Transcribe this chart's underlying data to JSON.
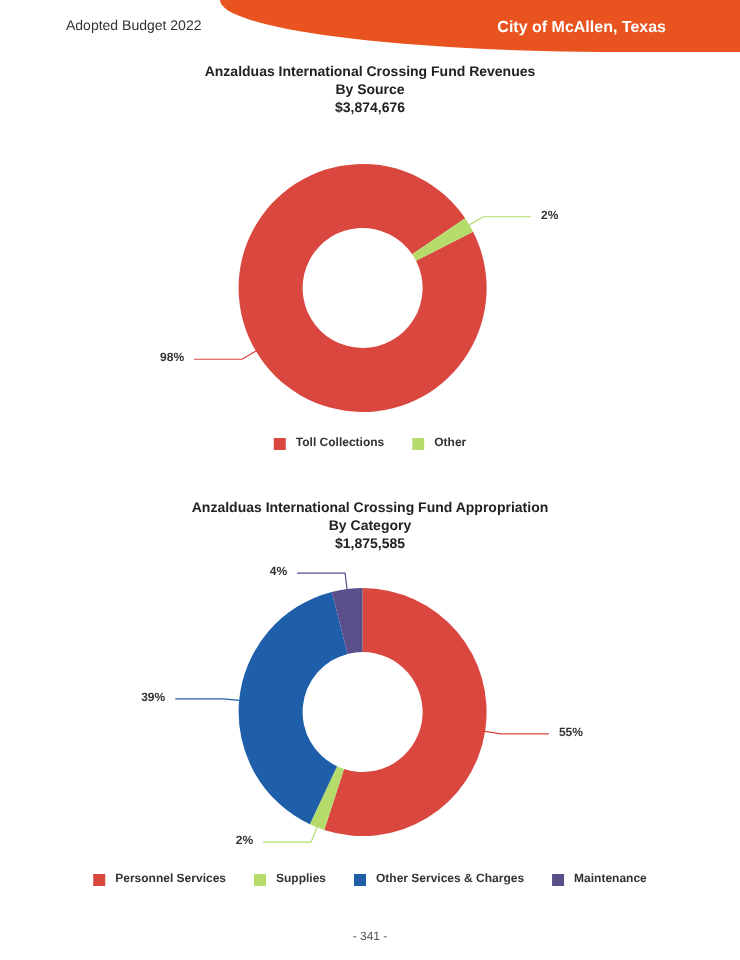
{
  "chart_data": [
    {
      "type": "donut",
      "title": "Anzalduas International Crossing Fund Revenues",
      "subtitle": "By Source",
      "annotations": [
        "$3,874,676",
        "Adopted Budget 2022",
        "City of McAllen, Texas"
      ],
      "categories": [
        "Toll Collections",
        "Other"
      ],
      "values": [
        98,
        2
      ],
      "colors": [
        "#d9473f",
        "#b5dc6a"
      ],
      "value_labels": [
        "98%",
        "2%"
      ],
      "legend": "bottom"
    },
    {
      "type": "donut",
      "title": "Anzalduas International Crossing Fund Appropriation",
      "subtitle": "By Category",
      "annotations": [
        "$1,875,585",
        "- 341 -"
      ],
      "categories": [
        "Personnel Services",
        "Supplies",
        "Other Services & Charges",
        "Maintenance"
      ],
      "values": [
        55,
        2,
        39,
        4
      ],
      "colors": [
        "#d9473f",
        "#b5dc6a",
        "#1f5fa9",
        "#5a4f8a"
      ],
      "value_labels": [
        "55%",
        "2%",
        "39%",
        "4%"
      ],
      "legend": "bottom"
    }
  ]
}
